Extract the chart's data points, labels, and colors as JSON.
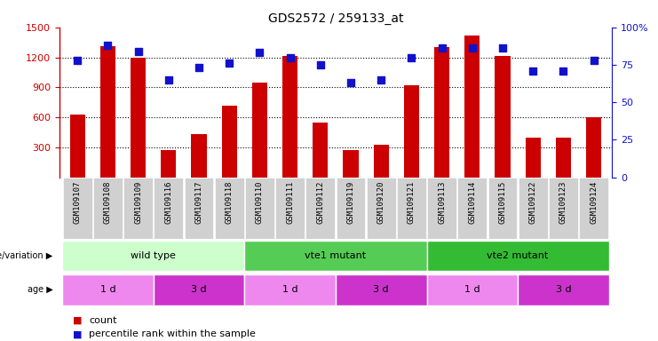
{
  "title": "GDS2572 / 259133_at",
  "samples": [
    "GSM109107",
    "GSM109108",
    "GSM109109",
    "GSM109116",
    "GSM109117",
    "GSM109118",
    "GSM109110",
    "GSM109111",
    "GSM109112",
    "GSM109119",
    "GSM109120",
    "GSM109121",
    "GSM109113",
    "GSM109114",
    "GSM109115",
    "GSM109122",
    "GSM109123",
    "GSM109124"
  ],
  "counts": [
    630,
    1310,
    1200,
    270,
    430,
    720,
    950,
    1210,
    545,
    270,
    330,
    920,
    1300,
    1420,
    1210,
    395,
    400,
    600
  ],
  "percentile_ranks": [
    78,
    88,
    84,
    65,
    73,
    76,
    83,
    80,
    75,
    63,
    65,
    80,
    86,
    86,
    86,
    71,
    71,
    78
  ],
  "ylim_left": [
    0,
    1500
  ],
  "ylim_right": [
    0,
    100
  ],
  "yticks_left": [
    300,
    600,
    900,
    1200,
    1500
  ],
  "yticks_right": [
    0,
    25,
    50,
    75,
    100
  ],
  "bar_color": "#cc0000",
  "dot_color": "#1111cc",
  "grid_color": "#000000",
  "genotype_groups": [
    {
      "label": "wild type",
      "start": 0,
      "end": 6,
      "color": "#ccffcc"
    },
    {
      "label": "vte1 mutant",
      "start": 6,
      "end": 12,
      "color": "#55cc55"
    },
    {
      "label": "vte2 mutant",
      "start": 12,
      "end": 18,
      "color": "#33bb33"
    }
  ],
  "age_groups": [
    {
      "label": "1 d",
      "start": 0,
      "end": 3,
      "color": "#ee88ee"
    },
    {
      "label": "3 d",
      "start": 3,
      "end": 6,
      "color": "#cc33cc"
    },
    {
      "label": "1 d",
      "start": 6,
      "end": 9,
      "color": "#ee88ee"
    },
    {
      "label": "3 d",
      "start": 9,
      "end": 12,
      "color": "#cc33cc"
    },
    {
      "label": "1 d",
      "start": 12,
      "end": 15,
      "color": "#ee88ee"
    },
    {
      "label": "3 d",
      "start": 15,
      "end": 18,
      "color": "#cc33cc"
    }
  ],
  "tick_label_color_left": "#cc0000",
  "tick_label_color_right": "#1111cc",
  "bg_color": "#ffffff"
}
